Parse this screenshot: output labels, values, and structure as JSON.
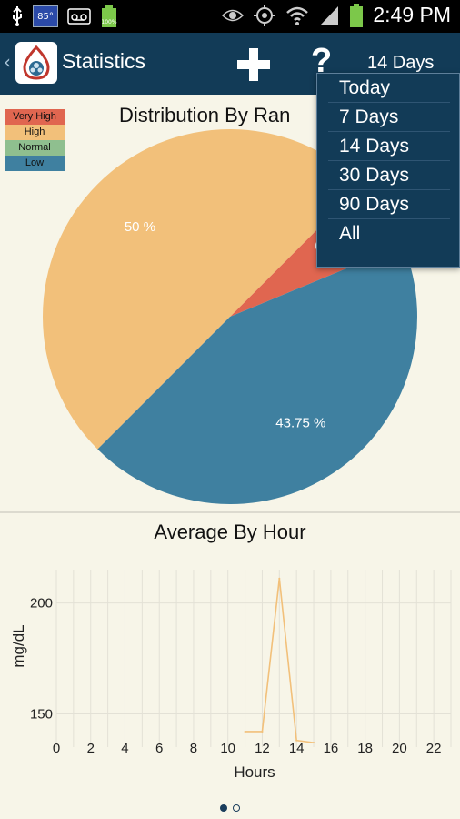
{
  "status_bar": {
    "temperature": "85°",
    "battery_level": "100%",
    "clock": "2:49 PM",
    "icons": [
      "usb-icon",
      "temperature-icon",
      "voicemail-icon",
      "battery-small-icon",
      "eye-icon",
      "gps-icon",
      "wifi-icon",
      "signal-icon",
      "battery-icon"
    ]
  },
  "action_bar": {
    "back_icon": "chevron-left-icon",
    "logo_icon": "app-logo-icon",
    "title": "Statistics",
    "add_icon": "plus-icon",
    "help_label": "?",
    "range_selected": "14 Days",
    "background_color": "#123b57"
  },
  "pie_chart": {
    "title": "Distribution By Ran",
    "legend": [
      {
        "label": "Very High",
        "color": "#e06650"
      },
      {
        "label": "High",
        "color": "#f2c07a"
      },
      {
        "label": "Normal",
        "color": "#8fbf8f"
      },
      {
        "label": "Low",
        "color": "#3f80a0"
      }
    ]
  },
  "line_chart": {
    "title": "Average By Hour"
  },
  "chart_data": [
    {
      "type": "pie",
      "title": "Distribution By Range",
      "slices": [
        {
          "label": "Very High",
          "value": 6.25,
          "display": "6.25 %",
          "color": "#e06650"
        },
        {
          "label": "High",
          "value": 50,
          "display": "50 %",
          "color": "#f2c07a"
        },
        {
          "label": "Normal",
          "value": 0,
          "display": "",
          "color": "#8fbf8f"
        },
        {
          "label": "Low",
          "value": 43.75,
          "display": "43.75 %",
          "color": "#3f80a0"
        }
      ]
    },
    {
      "type": "line",
      "title": "Average By Hour",
      "xlabel": "Hours",
      "ylabel": "mg/dL",
      "xlim": [
        0,
        23
      ],
      "ylim": [
        135,
        215
      ],
      "x_ticks": [
        0,
        2,
        4,
        6,
        8,
        10,
        12,
        14,
        16,
        18,
        20,
        22
      ],
      "y_ticks": [
        150,
        200
      ],
      "grid": true,
      "series": [
        {
          "color": "#f2c07a",
          "x": [
            11,
            12,
            13,
            14,
            15
          ],
          "y": [
            142,
            142,
            211,
            138,
            137
          ]
        }
      ]
    }
  ],
  "range_dropdown": {
    "options": [
      "Today",
      "7 Days",
      "14 Days",
      "30 Days",
      "90 Days",
      "All"
    ]
  },
  "pager": {
    "active_page": 1,
    "total_pages": 2
  }
}
